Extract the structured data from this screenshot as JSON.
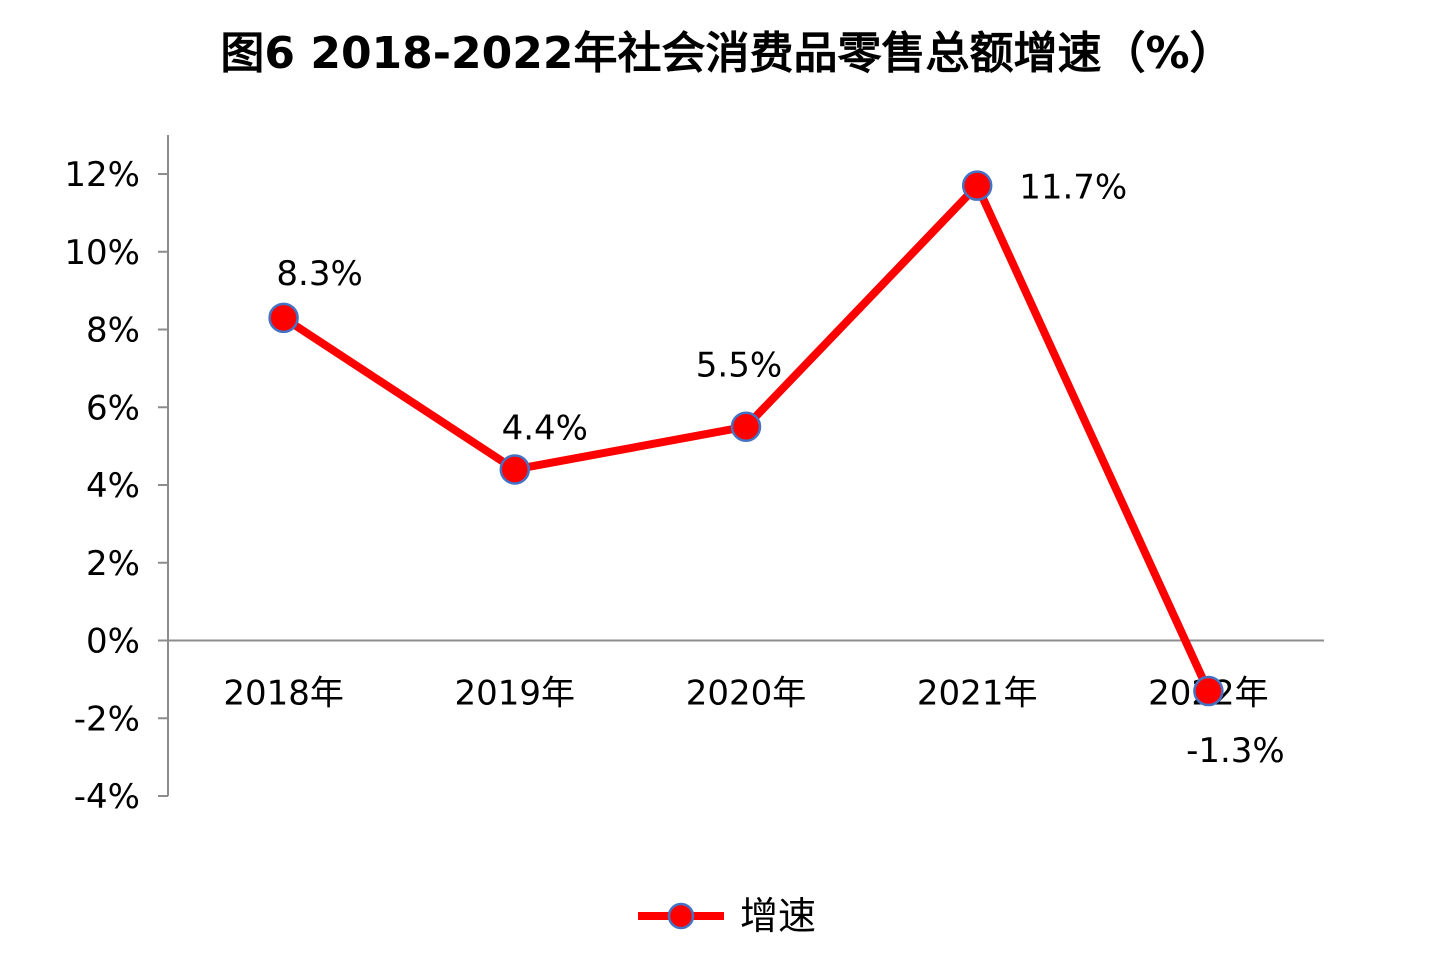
{
  "chart_data": {
    "type": "line",
    "title": "图6  2018-2022年社会消费品零售总额增速（%）",
    "categories": [
      "2018年",
      "2019年",
      "2020年",
      "2021年",
      "2022年"
    ],
    "series": [
      {
        "name": "增速",
        "values": [
          8.3,
          4.4,
          5.5,
          11.7,
          -1.3
        ],
        "labels": [
          "8.3%",
          "4.4%",
          "5.5%",
          "11.7%",
          "-1.3%"
        ],
        "color": "#ff0000",
        "marker_color": "#ff0000",
        "marker_edge": "#4472c4"
      }
    ],
    "ylim": [
      -4,
      12
    ],
    "yticks": [
      12,
      10,
      8,
      6,
      4,
      2,
      0,
      -2,
      -4
    ],
    "ytick_labels": [
      "12%",
      "10%",
      "8%",
      "6%",
      "4%",
      "2%",
      "0%",
      "-2%",
      "-4%"
    ],
    "grid": false,
    "legend": "bottom-center"
  }
}
